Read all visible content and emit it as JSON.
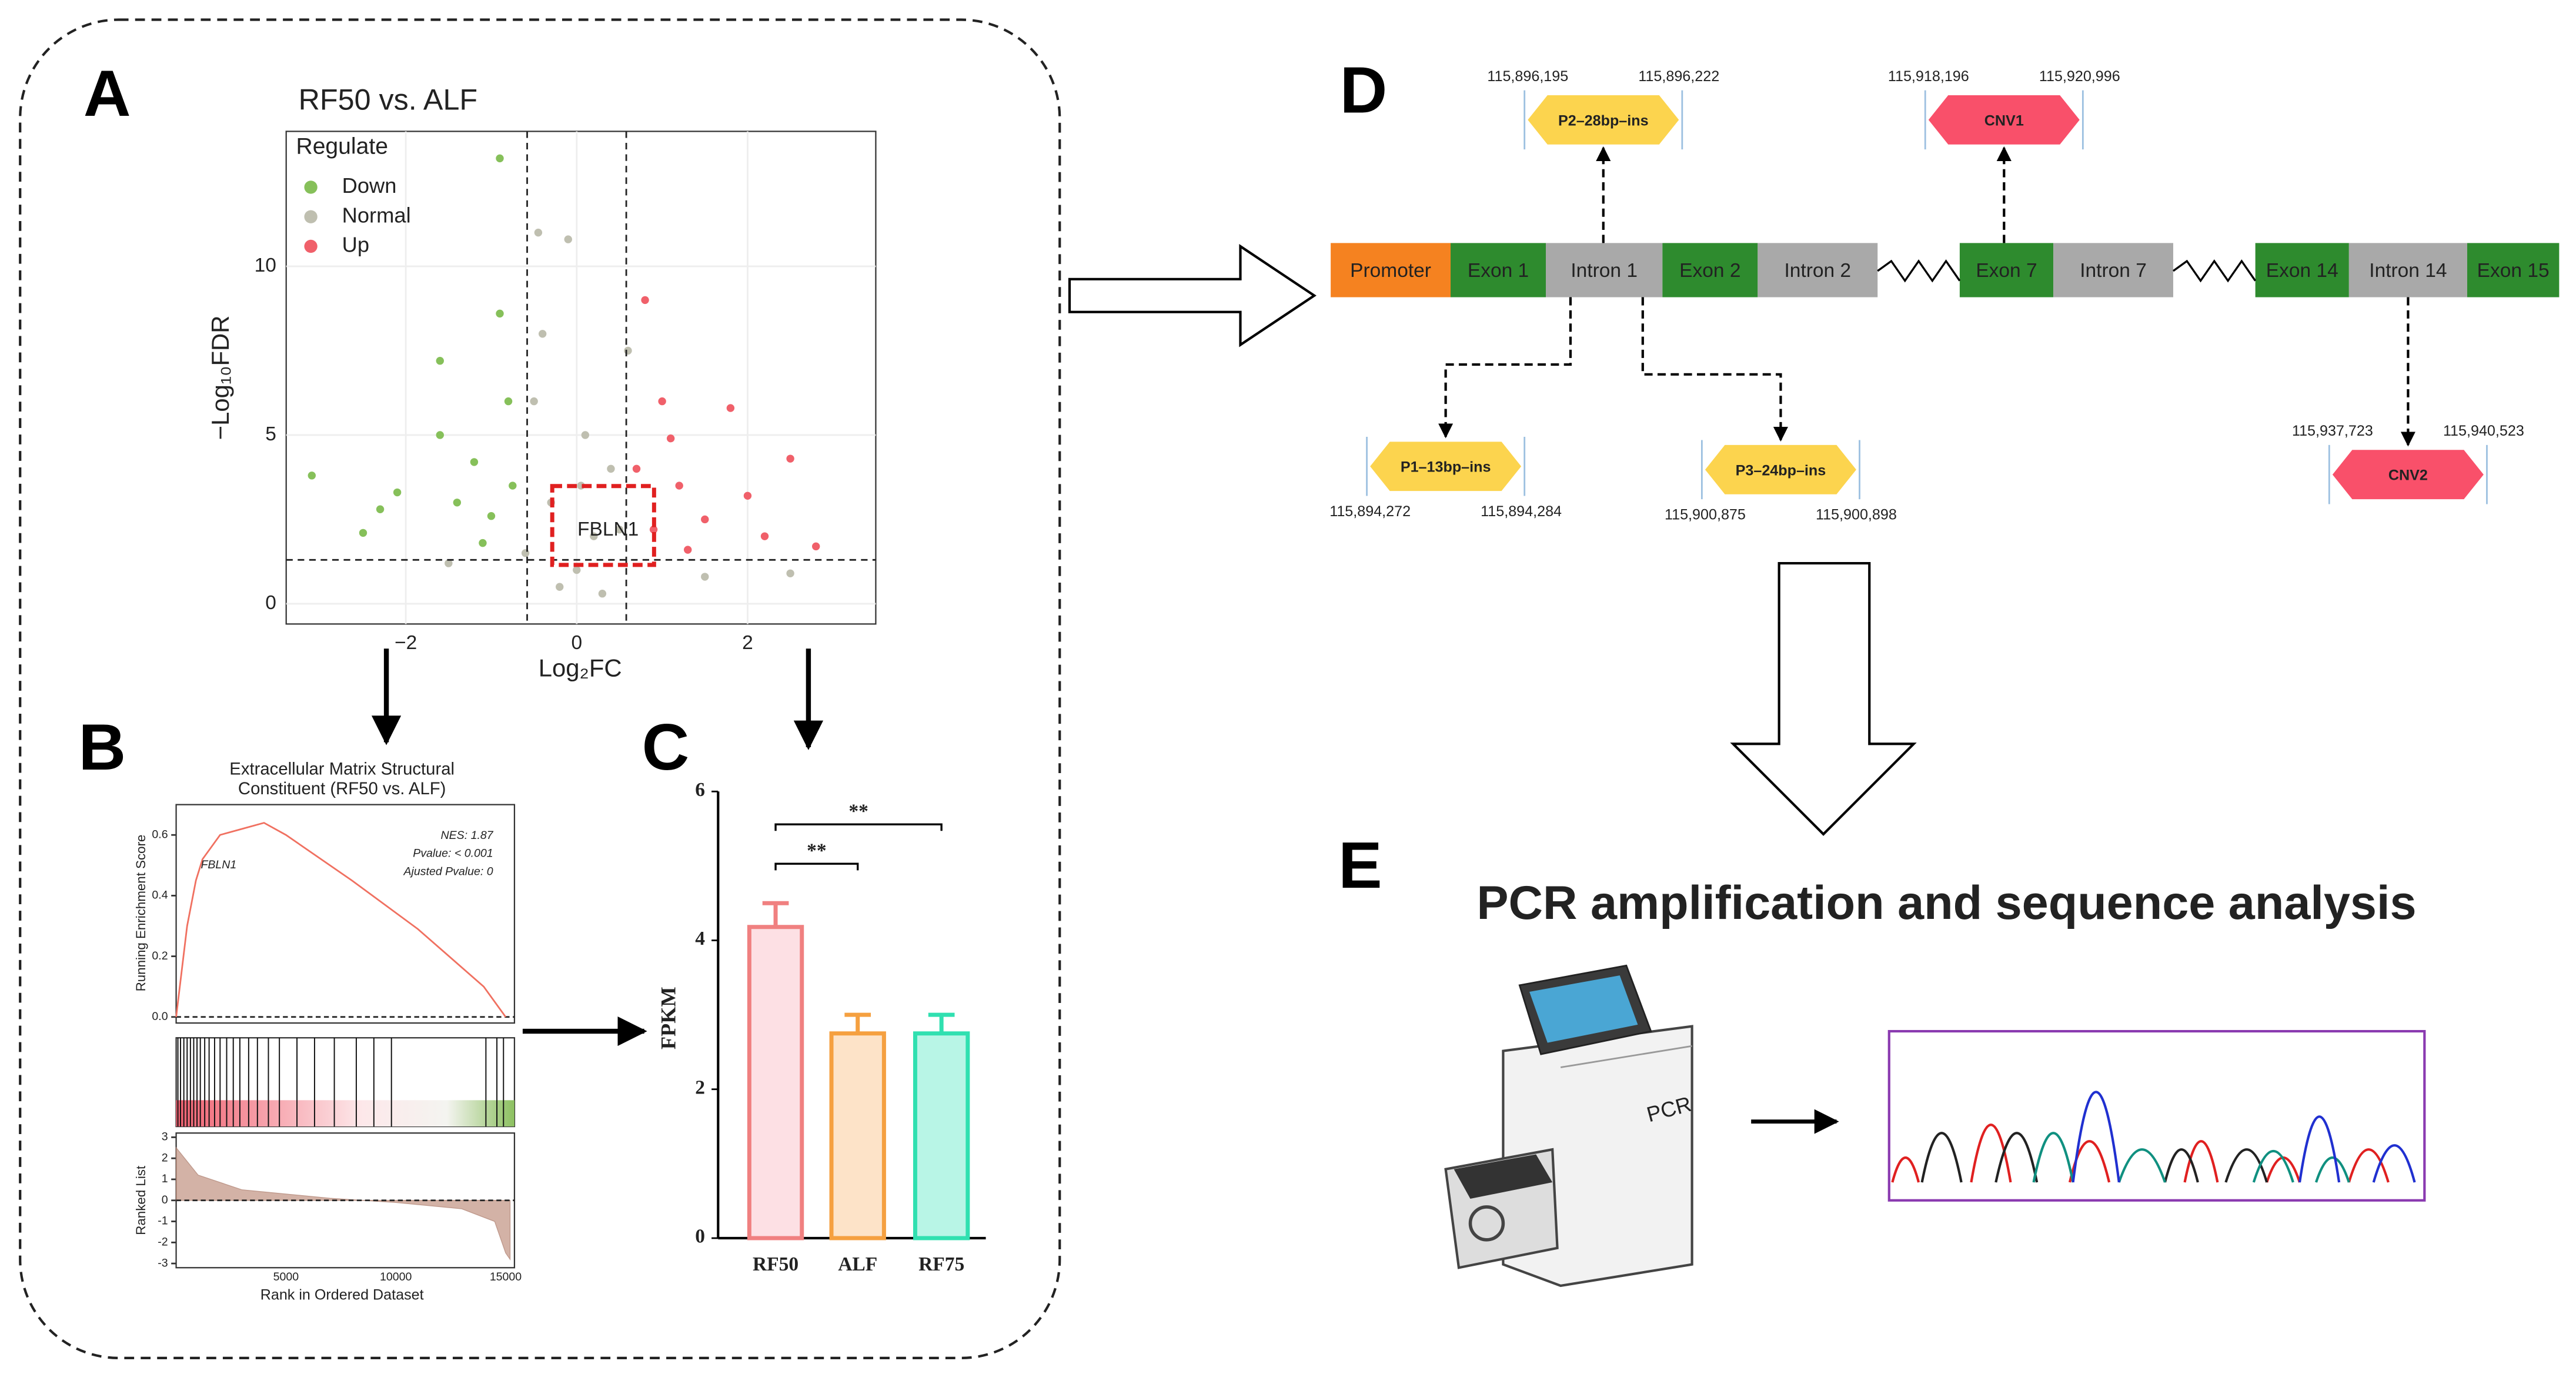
{
  "panel_labels": [
    "A",
    "B",
    "C",
    "D",
    "E"
  ],
  "chart_data": [
    {
      "type": "scatter",
      "title": "RF50 vs. ALF",
      "x_label": "Log₂FC",
      "y_label": "−Log₁₀FDR",
      "legend_title": "Regulate",
      "legend": "top-left",
      "grid": true,
      "xlim": [
        -3.4,
        3.5
      ],
      "ylim": [
        -0.6,
        14
      ],
      "xticks": [
        {
          "value": -2,
          "label": "−2"
        },
        0,
        2
      ],
      "yticks": [
        0,
        5,
        10
      ],
      "vlines": [
        -0.58,
        0.58
      ],
      "hline": 1.3,
      "annotation": "FBLN1",
      "series": [
        {
          "name": "Down",
          "color": "#86c05a",
          "x": [
            -3.1,
            -2.3,
            -2.1,
            -1.6,
            -1.4,
            -1.2,
            -1.0,
            -0.9,
            -0.8,
            -0.9,
            -1.6,
            -0.75,
            -1.1,
            -2.5
          ],
          "y": [
            3.8,
            2.8,
            3.3,
            5.0,
            3.0,
            4.2,
            2.6,
            8.6,
            6.0,
            13.2,
            7.2,
            3.5,
            1.8,
            2.1
          ]
        },
        {
          "name": "Normal",
          "color": "#bfbfb0",
          "x": [
            0,
            0.2,
            -0.3,
            -0.5,
            -0.4,
            0.1,
            0.4,
            -0.2,
            0.3,
            -0.6,
            0.5,
            -1.5,
            1.5,
            2.5,
            -0.1,
            0.6,
            -0.45,
            0.05
          ],
          "y": [
            1,
            2,
            3,
            6,
            8,
            5,
            4,
            0.5,
            0.3,
            1.5,
            2.2,
            1.2,
            0.8,
            0.9,
            10.8,
            7.5,
            11,
            3.5
          ]
        },
        {
          "name": "Up",
          "color": "#f0606a",
          "x": [
            0.8,
            0.7,
            1.0,
            1.2,
            1.5,
            2.0,
            2.5,
            2.8,
            1.8,
            0.9,
            1.3,
            2.2,
            1.1
          ],
          "y": [
            9,
            4,
            6,
            3.5,
            2.5,
            3.2,
            4.3,
            1.7,
            5.8,
            2.2,
            1.6,
            2.0,
            4.9
          ]
        }
      ]
    },
    {
      "type": "gsea",
      "title": [
        "Extracellular Matrix Structural",
        "Constituent (RF50 vs. ALF)"
      ],
      "y_label": "Running Enrichment Score",
      "y2_label": "Ranked List",
      "x_label": "Rank in Ordered Dataset",
      "annotations": [
        "NES: 1.87",
        "Pvalue: < 0.001",
        "Ajusted Pvalue: 0"
      ],
      "gene_label": "FBLN1",
      "color": "#f07060",
      "xlim": [
        0,
        15400
      ],
      "xticks": [
        5000,
        10000,
        15000
      ],
      "ylim": [
        -0.02,
        0.7
      ],
      "yticks": [
        {
          "value": 0,
          "label": "0.0"
        },
        {
          "value": 0.2,
          "label": "0.2"
        },
        {
          "value": 0.4,
          "label": "0.4"
        },
        {
          "value": 0.6,
          "label": "0.6"
        }
      ],
      "y2lim": [
        -3.2,
        3.2
      ],
      "y2ticks": [
        -3,
        -2,
        -1,
        0,
        1,
        2,
        3
      ],
      "es": {
        "x": [
          0,
          500,
          900,
          1200,
          2000,
          3000,
          4000,
          5000,
          8000,
          11000,
          14000,
          15000
        ],
        "y": [
          0,
          0.3,
          0.45,
          0.52,
          0.6,
          0.62,
          0.64,
          0.6,
          0.45,
          0.29,
          0.1,
          0
        ]
      },
      "hits": [
        80,
        200,
        350,
        500,
        650,
        800,
        950,
        1100,
        1300,
        1500,
        1750,
        2000,
        2300,
        2600,
        2900,
        3300,
        3700,
        4200,
        4700,
        5500,
        6300,
        7200,
        8200,
        9000,
        9800,
        14100,
        14600,
        14900
      ],
      "ranked": {
        "x": [
          0,
          1000,
          3000,
          7000,
          10000,
          13000,
          14500,
          15000,
          15200
        ],
        "y": [
          2.5,
          1.2,
          0.5,
          0.1,
          -0.1,
          -0.4,
          -1,
          -2.5,
          -2.8
        ]
      }
    },
    {
      "type": "bar",
      "y_label": "FPKM",
      "categories": [
        "RF50",
        "ALF",
        "RF75"
      ],
      "values": [
        4.18,
        2.75,
        2.75
      ],
      "errors": [
        0.32,
        0.25,
        0.25
      ],
      "colors": [
        "#f08080",
        "#f5a040",
        "#30e0b0"
      ],
      "fill_colors": [
        "#fde0e4",
        "#fde3c8",
        "#b8f5e6"
      ],
      "ylim": [
        0,
        6
      ],
      "yticks": [
        0,
        2,
        4,
        6
      ],
      "significance": [
        {
          "label": "**",
          "groups": [
            "RF50",
            "RF75"
          ]
        },
        {
          "label": "**",
          "groups": [
            "RF50",
            "ALF"
          ]
        }
      ]
    }
  ],
  "gene_diagram": {
    "segments": [
      {
        "label": "Promoter",
        "color": "#f58220"
      },
      {
        "label": "Exon 1",
        "color": "#2e8b2e"
      },
      {
        "label": "Intron 1",
        "color": "#a9a9a9"
      },
      {
        "label": "Exon 2",
        "color": "#2e8b2e"
      },
      {
        "label": "Intron 2",
        "color": "#a9a9a9"
      },
      {
        "label": "Exon 7",
        "color": "#2e8b2e"
      },
      {
        "label": "Intron 7",
        "color": "#a9a9a9"
      },
      {
        "label": "Exon 14",
        "color": "#2e8b2e"
      },
      {
        "label": "Intron 14",
        "color": "#a9a9a9"
      },
      {
        "label": "Exon 15",
        "color": "#2e8b2e"
      }
    ],
    "variants": [
      {
        "label": "P2–28bp–ins",
        "start": "115,896,195",
        "end": "115,896,222",
        "color": "#fcd44e"
      },
      {
        "label": "CNV1",
        "start": "115,918,196",
        "end": "115,920,996",
        "color": "#f9506a"
      },
      {
        "label": "P1–13bp–ins",
        "start": "115,894,272",
        "end": "115,894,284",
        "color": "#fcd44e"
      },
      {
        "label": "P3–24bp–ins",
        "start": "115,900,875",
        "end": "115,900,898",
        "color": "#fcd44e"
      },
      {
        "label": "CNV2",
        "start": "115,937,723",
        "end": "115,940,523",
        "color": "#f9506a"
      }
    ]
  },
  "pcr": {
    "title": "PCR amplification and sequence analysis",
    "machine_label": "PCR"
  }
}
